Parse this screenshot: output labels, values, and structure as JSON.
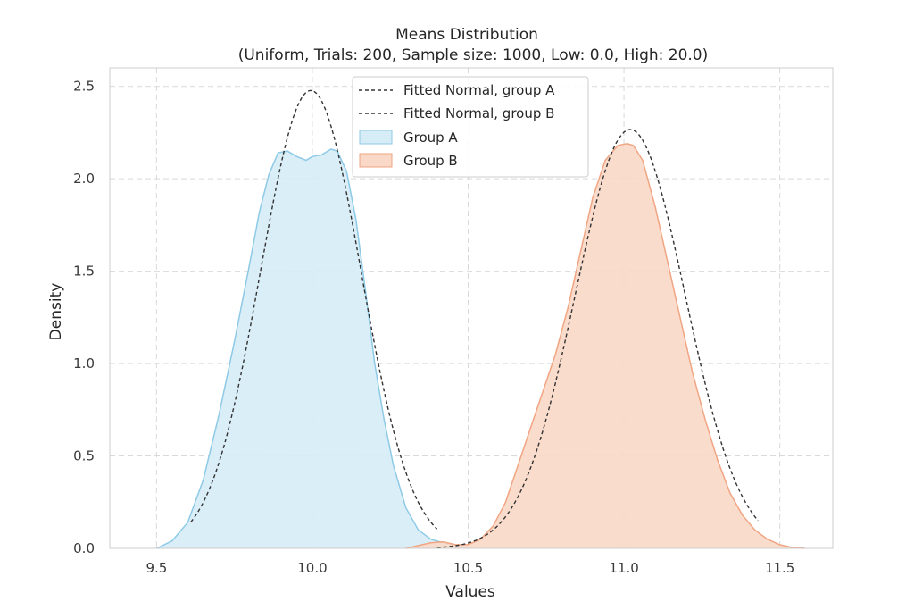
{
  "chart_data": {
    "type": "area",
    "title": "Means Distribution",
    "subtitle": "(Uniform, Trials: 200, Sample size: 1000, Low: 0.0, High: 20.0)",
    "xlabel": "Values",
    "ylabel": "Density",
    "xlim": [
      9.35,
      11.67
    ],
    "ylim": [
      0.0,
      2.6
    ],
    "xticks": [
      "9.5",
      "10.0",
      "10.5",
      "11.0",
      "11.5"
    ],
    "xtick_values": [
      9.5,
      10.0,
      10.5,
      11.0,
      11.5
    ],
    "yticks": [
      "0.0",
      "0.5",
      "1.0",
      "1.5",
      "2.0",
      "2.5"
    ],
    "ytick_values": [
      0.0,
      0.5,
      1.0,
      1.5,
      2.0,
      2.5
    ],
    "grid": true,
    "legend_position": "upper-center",
    "series": [
      {
        "name": "Group A",
        "kind": "kde-fill",
        "fill": "#d6ecf7",
        "stroke": "#8ecae6",
        "x": [
          9.5,
          9.55,
          9.6,
          9.65,
          9.7,
          9.75,
          9.8,
          9.83,
          9.86,
          9.89,
          9.92,
          9.95,
          9.98,
          10.0,
          10.03,
          10.06,
          10.08,
          10.11,
          10.14,
          10.17,
          10.2,
          10.23,
          10.26,
          10.3,
          10.34,
          10.38,
          10.42,
          10.46,
          10.5
        ],
        "y": [
          0.0,
          0.04,
          0.14,
          0.37,
          0.72,
          1.12,
          1.55,
          1.82,
          2.02,
          2.14,
          2.15,
          2.12,
          2.1,
          2.12,
          2.13,
          2.16,
          2.15,
          2.04,
          1.78,
          1.4,
          1.0,
          0.7,
          0.45,
          0.22,
          0.1,
          0.05,
          0.03,
          0.015,
          0.0
        ]
      },
      {
        "name": "Group B",
        "kind": "kde-fill",
        "fill": "#f9d8c7",
        "stroke": "#f0a583",
        "x": [
          10.3,
          10.34,
          10.38,
          10.42,
          10.46,
          10.5,
          10.54,
          10.58,
          10.62,
          10.66,
          10.7,
          10.74,
          10.78,
          10.82,
          10.86,
          10.9,
          10.94,
          10.98,
          11.01,
          11.03,
          11.06,
          11.1,
          11.14,
          11.18,
          11.22,
          11.26,
          11.3,
          11.34,
          11.38,
          11.42,
          11.46,
          11.5,
          11.54,
          11.58
        ],
        "y": [
          0.0,
          0.015,
          0.03,
          0.035,
          0.02,
          0.02,
          0.05,
          0.12,
          0.25,
          0.45,
          0.65,
          0.85,
          1.05,
          1.3,
          1.6,
          1.9,
          2.1,
          2.18,
          2.19,
          2.18,
          2.1,
          1.85,
          1.55,
          1.25,
          0.95,
          0.7,
          0.48,
          0.3,
          0.18,
          0.1,
          0.05,
          0.02,
          0.005,
          0.0
        ]
      },
      {
        "name": "Fitted Normal, group A",
        "kind": "normal-fit",
        "stroke": "#333333",
        "mean": 9.995,
        "std": 0.161,
        "x_range": [
          9.61,
          10.4
        ]
      },
      {
        "name": "Fitted Normal, group B",
        "kind": "normal-fit",
        "stroke": "#333333",
        "mean": 11.02,
        "std": 0.176,
        "x_range": [
          10.4,
          11.43
        ]
      }
    ],
    "legend": [
      "Fitted Normal, group A",
      "Fitted Normal, group B",
      "Group A",
      "Group B"
    ]
  }
}
